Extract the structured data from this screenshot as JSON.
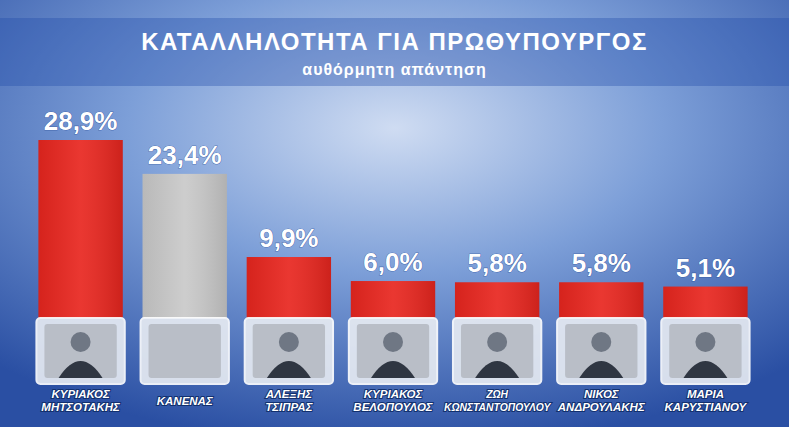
{
  "chart_data": {
    "type": "bar",
    "title": "ΚΑΤΑΛΛΗΛΟΤΗΤΑ ΓΙΑ ΠΡΩΘΥΠΟΥΡΓΟΣ",
    "subtitle": "αυθόρμητη απάντηση",
    "categories": [
      "ΚΥΡΙΑΚΟΣ ΜΗΤΣΟΤΑΚΗΣ",
      "ΚΑΝΕΝΑΣ",
      "ΑΛΕΞΗΣ ΤΣΙΠΡΑΣ",
      "ΚΥΡΙΑΚΟΣ ΒΕΛΟΠΟΥΛΟΣ",
      "ΖΩΗ ΚΩΝΣΤΑΝΤΟΠΟΥΛΟΥ",
      "ΝΙΚΟΣ ΑΝΔΡΟΥΛΑΚΗΣ",
      "ΜΑΡΙΑ ΚΑΡΥΣΤΙΑΝΟΥ"
    ],
    "values": [
      28.9,
      23.4,
      9.9,
      6.0,
      5.8,
      5.8,
      5.1
    ],
    "value_labels": [
      "28,9%",
      "23,4%",
      "9,9%",
      "6,0%",
      "5,8%",
      "5,8%",
      "5,1%"
    ],
    "colors": [
      "#e8261f",
      "#c9c9c9",
      "#e8261f",
      "#e8261f",
      "#e8261f",
      "#e8261f",
      "#e8261f"
    ],
    "data_labels": true,
    "tick_labels": false,
    "grid": false
  }
}
